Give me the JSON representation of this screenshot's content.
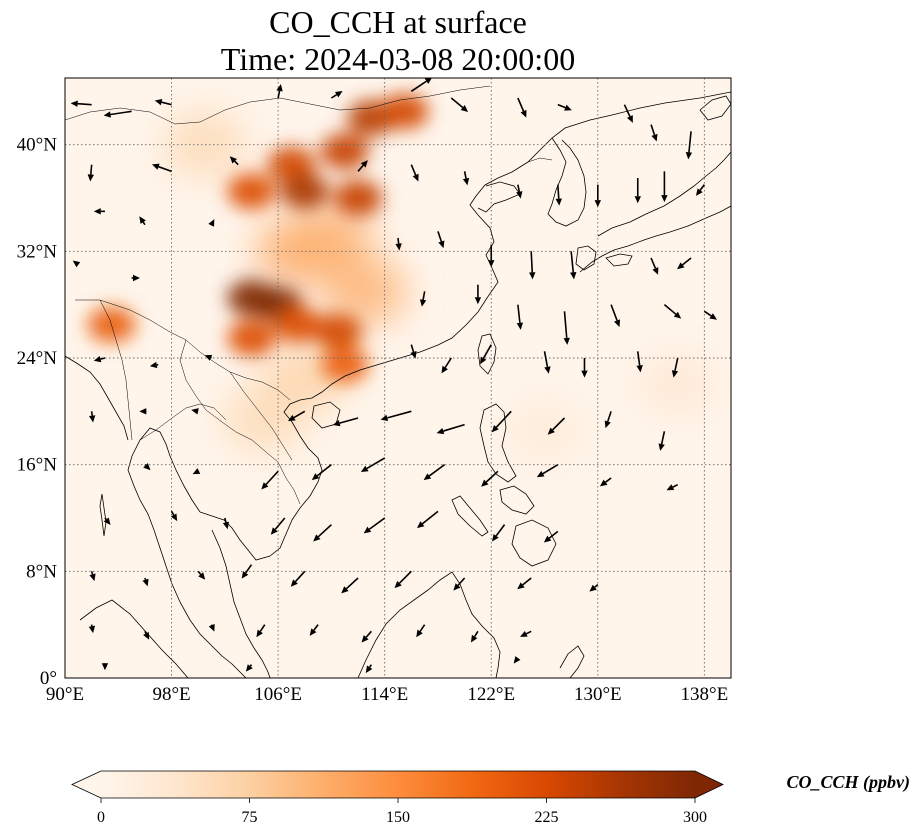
{
  "figure": {
    "title_line1": "CO_CCH at surface",
    "title_line2": "Time: 2024-03-08 20:00:00"
  },
  "map": {
    "lon_range": [
      90,
      140
    ],
    "lat_range": [
      0,
      45
    ],
    "x_ticks": [
      {
        "value": 90,
        "label": "90°E"
      },
      {
        "value": 98,
        "label": "98°E"
      },
      {
        "value": 106,
        "label": "106°E"
      },
      {
        "value": 114,
        "label": "114°E"
      },
      {
        "value": 122,
        "label": "122°E"
      },
      {
        "value": 130,
        "label": "130°E"
      },
      {
        "value": 138,
        "label": "138°E"
      }
    ],
    "y_ticks": [
      {
        "value": 0,
        "label": "0°"
      },
      {
        "value": 8,
        "label": "8°N"
      },
      {
        "value": 16,
        "label": "16°N"
      },
      {
        "value": 24,
        "label": "24°N"
      },
      {
        "value": 32,
        "label": "32°N"
      },
      {
        "value": 40,
        "label": "40°N"
      }
    ],
    "gridlines": true,
    "background_color": "#fff5eb",
    "coastline_color": "#000000",
    "high_concentration_regions": [
      {
        "lon": 104.0,
        "lat": 28.5,
        "value": 300
      },
      {
        "lon": 106.0,
        "lat": 28.0,
        "value": 300
      },
      {
        "lon": 107.5,
        "lat": 26.5,
        "value": 220
      },
      {
        "lon": 110.5,
        "lat": 26.0,
        "value": 230
      },
      {
        "lon": 111.0,
        "lat": 23.5,
        "value": 200
      },
      {
        "lon": 104.0,
        "lat": 25.5,
        "value": 220
      },
      {
        "lon": 107.0,
        "lat": 38.5,
        "value": 230
      },
      {
        "lon": 104.0,
        "lat": 36.5,
        "value": 220
      },
      {
        "lon": 108.0,
        "lat": 36.5,
        "value": 260
      },
      {
        "lon": 112.0,
        "lat": 36.0,
        "value": 240
      },
      {
        "lon": 111.0,
        "lat": 39.5,
        "value": 240
      },
      {
        "lon": 113.0,
        "lat": 42.0,
        "value": 250
      },
      {
        "lon": 115.5,
        "lat": 42.5,
        "value": 230
      },
      {
        "lon": 93.5,
        "lat": 26.5,
        "value": 200
      }
    ],
    "moderate_regions": [
      {
        "lon": 107.5,
        "lat": 32.0,
        "value": 120
      },
      {
        "lon": 110.0,
        "lat": 33.0,
        "value": 110
      },
      {
        "lon": 108.0,
        "lat": 22.5,
        "value": 70
      },
      {
        "lon": 105.0,
        "lat": 19.5,
        "value": 60
      },
      {
        "lon": 100.5,
        "lat": 40.0,
        "value": 60
      },
      {
        "lon": 112.5,
        "lat": 29.0,
        "value": 110
      },
      {
        "lon": 136.0,
        "lat": 22.0,
        "value": 30
      },
      {
        "lon": 126.0,
        "lat": 18.5,
        "value": 25
      }
    ],
    "wind_vectors": [
      {
        "lon": 92,
        "lat": 43,
        "u": -1.5,
        "v": 0.1
      },
      {
        "lon": 95,
        "lat": 42.5,
        "u": -2,
        "v": -0.3
      },
      {
        "lon": 98,
        "lat": 43,
        "u": -1.2,
        "v": 0.3
      },
      {
        "lon": 106,
        "lat": 43.5,
        "u": 0.2,
        "v": 1
      },
      {
        "lon": 110,
        "lat": 43.5,
        "u": 0.8,
        "v": 0.5
      },
      {
        "lon": 116,
        "lat": 44,
        "u": 1.5,
        "v": 1
      },
      {
        "lon": 119,
        "lat": 43.5,
        "u": 1.2,
        "v": -1
      },
      {
        "lon": 124,
        "lat": 43.5,
        "u": 0.6,
        "v": -1.4
      },
      {
        "lon": 127,
        "lat": 43,
        "u": 1,
        "v": -0.4
      },
      {
        "lon": 132,
        "lat": 43,
        "u": 0.6,
        "v": -1.3
      },
      {
        "lon": 134,
        "lat": 41.5,
        "u": 0.4,
        "v": -1.2
      },
      {
        "lon": 137,
        "lat": 41,
        "u": -0.2,
        "v": -2
      },
      {
        "lon": 92,
        "lat": 38.5,
        "u": -0.1,
        "v": -1.2
      },
      {
        "lon": 98,
        "lat": 38,
        "u": -1.4,
        "v": 0.5
      },
      {
        "lon": 103,
        "lat": 38.5,
        "u": -0.6,
        "v": 0.6
      },
      {
        "lon": 112,
        "lat": 38,
        "u": 0.7,
        "v": 0.8
      },
      {
        "lon": 116,
        "lat": 38.5,
        "u": 0.5,
        "v": -1.2
      },
      {
        "lon": 120,
        "lat": 38,
        "u": 0.2,
        "v": -1
      },
      {
        "lon": 124,
        "lat": 37,
        "u": 0.2,
        "v": -1
      },
      {
        "lon": 127,
        "lat": 37,
        "u": 0.1,
        "v": -1.5
      },
      {
        "lon": 130,
        "lat": 37,
        "u": 0,
        "v": -1.6
      },
      {
        "lon": 133,
        "lat": 37.5,
        "u": 0,
        "v": -1.8
      },
      {
        "lon": 135,
        "lat": 38,
        "u": 0,
        "v": -2.2
      },
      {
        "lon": 138,
        "lat": 37,
        "u": -0.6,
        "v": -0.8
      },
      {
        "lon": 93,
        "lat": 35,
        "u": -0.8,
        "v": 0
      },
      {
        "lon": 96,
        "lat": 34,
        "u": -0.4,
        "v": 0.6
      },
      {
        "lon": 101,
        "lat": 34,
        "u": 0.2,
        "v": 0.4
      },
      {
        "lon": 115,
        "lat": 33,
        "u": 0.1,
        "v": -0.9
      },
      {
        "lon": 118,
        "lat": 33.5,
        "u": 0.4,
        "v": -1.2
      },
      {
        "lon": 122,
        "lat": 32.5,
        "u": 0,
        "v": -1.6
      },
      {
        "lon": 125,
        "lat": 32,
        "u": 0.1,
        "v": -2
      },
      {
        "lon": 128,
        "lat": 32,
        "u": 0.2,
        "v": -2
      },
      {
        "lon": 134,
        "lat": 31.5,
        "u": 0.5,
        "v": -1.2
      },
      {
        "lon": 137,
        "lat": 31.5,
        "u": -1,
        "v": -0.8
      },
      {
        "lon": 91,
        "lat": 31,
        "u": -0.4,
        "v": 0.3
      },
      {
        "lon": 95,
        "lat": 30,
        "u": 0.6,
        "v": 0
      },
      {
        "lon": 117,
        "lat": 29,
        "u": -0.2,
        "v": -1.1
      },
      {
        "lon": 121,
        "lat": 29.5,
        "u": 0,
        "v": -1.4
      },
      {
        "lon": 124,
        "lat": 28,
        "u": 0.2,
        "v": -1.8
      },
      {
        "lon": 127.5,
        "lat": 27.5,
        "u": 0.2,
        "v": -2.4
      },
      {
        "lon": 131,
        "lat": 28,
        "u": 0.6,
        "v": -1.6
      },
      {
        "lon": 135,
        "lat": 28,
        "u": 1.2,
        "v": -1
      },
      {
        "lon": 138,
        "lat": 27.5,
        "u": 0.9,
        "v": -0.6
      },
      {
        "lon": 93,
        "lat": 24,
        "u": -0.8,
        "v": -0.2
      },
      {
        "lon": 97,
        "lat": 23.5,
        "u": -0.6,
        "v": -0.1
      },
      {
        "lon": 101,
        "lat": 24,
        "u": -0.5,
        "v": 0.2
      },
      {
        "lon": 116,
        "lat": 25,
        "u": 0.3,
        "v": -1
      },
      {
        "lon": 119,
        "lat": 24,
        "u": -0.7,
        "v": -1.1
      },
      {
        "lon": 122,
        "lat": 25,
        "u": -0.8,
        "v": -1.4
      },
      {
        "lon": 126,
        "lat": 24.5,
        "u": 0.3,
        "v": -1.6
      },
      {
        "lon": 129,
        "lat": 24,
        "u": 0,
        "v": -1.4
      },
      {
        "lon": 133,
        "lat": 24.5,
        "u": 0.2,
        "v": -1.5
      },
      {
        "lon": 136,
        "lat": 24,
        "u": -0.3,
        "v": -1.4
      },
      {
        "lon": 92,
        "lat": 20,
        "u": 0.1,
        "v": -0.8
      },
      {
        "lon": 96,
        "lat": 20,
        "u": -0.4,
        "v": 0
      },
      {
        "lon": 100,
        "lat": 20,
        "u": -0.5,
        "v": 0.1
      },
      {
        "lon": 108,
        "lat": 20,
        "u": -1.2,
        "v": -0.7
      },
      {
        "lon": 112,
        "lat": 19.5,
        "u": -1.8,
        "v": -0.5
      },
      {
        "lon": 116,
        "lat": 20,
        "u": -2.2,
        "v": -0.6
      },
      {
        "lon": 120,
        "lat": 19,
        "u": -2,
        "v": -0.6
      },
      {
        "lon": 123.5,
        "lat": 20,
        "u": -1.4,
        "v": -1.5
      },
      {
        "lon": 127.5,
        "lat": 19.5,
        "u": -1.2,
        "v": -1.2
      },
      {
        "lon": 131,
        "lat": 20,
        "u": -0.4,
        "v": -1.2
      },
      {
        "lon": 135,
        "lat": 18.5,
        "u": -0.3,
        "v": -1.4
      },
      {
        "lon": 96,
        "lat": 16,
        "u": 0.4,
        "v": -0.4
      },
      {
        "lon": 100,
        "lat": 15.5,
        "u": -0.4,
        "v": -0.2
      },
      {
        "lon": 106,
        "lat": 15.5,
        "u": -1.2,
        "v": -1.3
      },
      {
        "lon": 110,
        "lat": 16,
        "u": -1.4,
        "v": -1.1
      },
      {
        "lon": 114,
        "lat": 16.5,
        "u": -1.7,
        "v": -1
      },
      {
        "lon": 118.5,
        "lat": 16,
        "u": -1.5,
        "v": -1.1
      },
      {
        "lon": 122.5,
        "lat": 15.5,
        "u": -1.2,
        "v": -1.1
      },
      {
        "lon": 127,
        "lat": 16,
        "u": -1.5,
        "v": -0.9
      },
      {
        "lon": 131,
        "lat": 15,
        "u": -0.8,
        "v": -0.6
      },
      {
        "lon": 136,
        "lat": 14.5,
        "u": -0.8,
        "v": -0.4
      },
      {
        "lon": 93,
        "lat": 12,
        "u": 0.4,
        "v": -0.5
      },
      {
        "lon": 98,
        "lat": 12.5,
        "u": 0.4,
        "v": -0.7
      },
      {
        "lon": 102,
        "lat": 12,
        "u": 0.2,
        "v": -0.8
      },
      {
        "lon": 106.5,
        "lat": 12,
        "u": -1,
        "v": -1.2
      },
      {
        "lon": 110,
        "lat": 11.5,
        "u": -1.3,
        "v": -1.2
      },
      {
        "lon": 114,
        "lat": 12,
        "u": -1.5,
        "v": -1.1
      },
      {
        "lon": 118,
        "lat": 12.5,
        "u": -1.5,
        "v": -1.2
      },
      {
        "lon": 123,
        "lat": 11.5,
        "u": -0.9,
        "v": -1.2
      },
      {
        "lon": 127,
        "lat": 11,
        "u": -1,
        "v": -0.8
      },
      {
        "lon": 92,
        "lat": 8,
        "u": 0.2,
        "v": -0.7
      },
      {
        "lon": 96,
        "lat": 7.5,
        "u": 0.2,
        "v": -0.6
      },
      {
        "lon": 100,
        "lat": 8,
        "u": 0.5,
        "v": -0.6
      },
      {
        "lon": 104,
        "lat": 8.5,
        "u": -0.7,
        "v": -1
      },
      {
        "lon": 108,
        "lat": 8,
        "u": -1,
        "v": -1.1
      },
      {
        "lon": 112,
        "lat": 7.5,
        "u": -1.2,
        "v": -1.1
      },
      {
        "lon": 116,
        "lat": 8,
        "u": -1.2,
        "v": -1.2
      },
      {
        "lon": 120,
        "lat": 7.5,
        "u": -0.8,
        "v": -0.9
      },
      {
        "lon": 125,
        "lat": 7.5,
        "u": -1,
        "v": -0.8
      },
      {
        "lon": 130,
        "lat": 7,
        "u": -0.6,
        "v": -0.5
      },
      {
        "lon": 92,
        "lat": 4,
        "u": 0.1,
        "v": -0.6
      },
      {
        "lon": 96,
        "lat": 3.5,
        "u": 0.3,
        "v": -0.6
      },
      {
        "lon": 101,
        "lat": 4,
        "u": 0.2,
        "v": -0.5
      },
      {
        "lon": 105,
        "lat": 4,
        "u": -0.6,
        "v": -0.9
      },
      {
        "lon": 109,
        "lat": 4,
        "u": -0.6,
        "v": -0.8
      },
      {
        "lon": 113,
        "lat": 3.5,
        "u": -0.7,
        "v": -0.8
      },
      {
        "lon": 117,
        "lat": 4,
        "u": -0.6,
        "v": -0.9
      },
      {
        "lon": 121,
        "lat": 3.5,
        "u": -0.5,
        "v": -0.8
      },
      {
        "lon": 125,
        "lat": 3.5,
        "u": -0.8,
        "v": -0.4
      },
      {
        "lon": 93,
        "lat": 1,
        "u": 0,
        "v": -0.4
      },
      {
        "lon": 104,
        "lat": 1,
        "u": -0.4,
        "v": -0.5
      },
      {
        "lon": 113,
        "lat": 1,
        "u": -0.4,
        "v": -0.6
      },
      {
        "lon": 124,
        "lat": 1.5,
        "u": -0.3,
        "v": -0.4
      }
    ]
  },
  "colorbar": {
    "vmin": 0,
    "vmax": 300,
    "colormap": [
      "#fff5eb",
      "#fee6ce",
      "#fdd0a2",
      "#fdae6b",
      "#fd8d3c",
      "#f16913",
      "#d94801",
      "#a63603",
      "#7f2704"
    ],
    "ticks": [
      {
        "value": 0,
        "label": "0"
      },
      {
        "value": 75,
        "label": "75"
      },
      {
        "value": 150,
        "label": "150"
      },
      {
        "value": 225,
        "label": "225"
      },
      {
        "value": 300,
        "label": "300"
      }
    ],
    "label": "CO_CCH (ppbv)",
    "extend": "both"
  }
}
